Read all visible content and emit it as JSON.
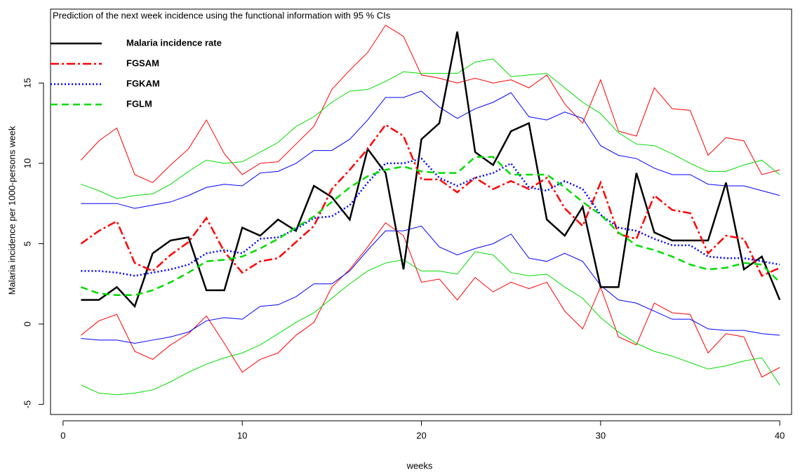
{
  "chart_data": {
    "type": "line",
    "title": "Prediction of the next week incidence using the functional information with 95 % CIs",
    "x_label": "weeks",
    "y_label": "Malaria incidence per 1000-persons week",
    "x": [
      1,
      2,
      3,
      4,
      5,
      6,
      7,
      8,
      9,
      10,
      11,
      12,
      13,
      14,
      15,
      16,
      17,
      18,
      19,
      20,
      21,
      22,
      23,
      24,
      25,
      26,
      27,
      28,
      29,
      30,
      31,
      32,
      33,
      34,
      35,
      36,
      37,
      38,
      39,
      40
    ],
    "xlim": [
      -0.7,
      40.66
    ],
    "ylim": [
      -5.63,
      19.6
    ],
    "xticks": [
      0,
      10,
      20,
      30,
      40
    ],
    "yticks": [
      -5,
      0,
      5,
      10,
      15
    ],
    "series": [
      {
        "name": "Malaria incidence rate",
        "color": "#000000",
        "dash": "solid",
        "values": [
          1.5,
          1.5,
          2.3,
          1.1,
          4.4,
          5.2,
          5.4,
          2.1,
          2.1,
          6.0,
          5.5,
          6.5,
          5.8,
          8.6,
          7.9,
          6.5,
          10.9,
          9.4,
          3.4,
          11.5,
          12.5,
          18.2,
          10.7,
          9.9,
          12.0,
          12.5,
          6.5,
          5.5,
          7.3,
          2.3,
          2.3,
          9.4,
          5.7,
          5.2,
          5.2,
          5.2,
          8.8,
          3.4,
          4.2,
          1.5
        ]
      },
      {
        "name": "FGSAM",
        "color": "#ff0000",
        "dash": "dashdot",
        "values": [
          5.0,
          5.8,
          6.4,
          3.8,
          3.3,
          4.3,
          5.1,
          6.6,
          4.5,
          3.2,
          3.9,
          4.1,
          5.1,
          6.1,
          8.4,
          9.6,
          10.9,
          12.4,
          11.7,
          9.0,
          9.0,
          8.2,
          9.1,
          8.4,
          8.9,
          8.4,
          9.1,
          7.2,
          6.1,
          8.8,
          5.6,
          5.3,
          8.0,
          7.1,
          6.9,
          4.4,
          5.5,
          5.3,
          3.0,
          3.5
        ],
        "upper": [
          10.2,
          11.4,
          12.2,
          9.3,
          8.8,
          9.9,
          10.9,
          12.7,
          10.6,
          9.3,
          10.0,
          10.1,
          11.2,
          12.3,
          14.6,
          15.8,
          16.9,
          18.6,
          17.9,
          15.5,
          15.3,
          15.0,
          15.3,
          15.0,
          15.2,
          14.7,
          15.5,
          13.7,
          12.5,
          15.2,
          12.0,
          11.7,
          14.7,
          13.4,
          13.3,
          10.5,
          11.6,
          11.4,
          9.3,
          9.6
        ],
        "lower": [
          -0.7,
          0.2,
          0.6,
          -1.7,
          -2.2,
          -1.3,
          -0.6,
          0.5,
          -1.2,
          -3.0,
          -2.2,
          -1.8,
          -0.7,
          0.1,
          2.3,
          3.4,
          4.8,
          6.3,
          5.5,
          2.6,
          2.8,
          1.5,
          2.9,
          2.0,
          2.6,
          2.2,
          2.6,
          0.8,
          -0.3,
          2.3,
          -0.8,
          -1.3,
          1.3,
          0.7,
          0.6,
          -1.8,
          -0.6,
          -0.8,
          -3.3,
          -2.7
        ]
      },
      {
        "name": "FGKAM",
        "color": "#0000ff",
        "dash": "dotted",
        "values": [
          3.3,
          3.3,
          3.2,
          3.0,
          3.2,
          3.4,
          3.7,
          4.4,
          4.6,
          4.4,
          5.3,
          5.4,
          5.9,
          6.6,
          6.7,
          7.4,
          8.8,
          10.0,
          10.0,
          10.3,
          9.1,
          8.6,
          9.1,
          9.4,
          10.0,
          8.5,
          8.3,
          8.9,
          8.4,
          6.8,
          6.0,
          5.8,
          5.3,
          4.9,
          4.9,
          4.2,
          4.1,
          4.1,
          3.9,
          3.7
        ],
        "upper": [
          7.5,
          7.5,
          7.5,
          7.2,
          7.4,
          7.6,
          8.0,
          8.5,
          8.7,
          8.6,
          9.4,
          9.5,
          10.0,
          10.8,
          10.8,
          11.5,
          12.7,
          14.1,
          14.1,
          14.5,
          13.5,
          12.8,
          13.4,
          13.8,
          14.4,
          12.9,
          12.7,
          13.2,
          12.8,
          11.1,
          10.5,
          10.3,
          9.7,
          9.3,
          9.3,
          8.7,
          8.6,
          8.6,
          8.3,
          8.0
        ],
        "lower": [
          -0.9,
          -1.0,
          -1.0,
          -1.2,
          -1.0,
          -0.8,
          -0.5,
          0.2,
          0.4,
          0.3,
          1.1,
          1.2,
          1.7,
          2.5,
          2.5,
          3.3,
          4.6,
          5.8,
          5.8,
          6.1,
          4.8,
          4.3,
          4.7,
          5.0,
          5.6,
          4.1,
          3.9,
          4.4,
          3.9,
          2.4,
          1.5,
          1.3,
          0.8,
          0.3,
          0.3,
          -0.3,
          -0.4,
          -0.4,
          -0.6,
          -0.7
        ]
      },
      {
        "name": "FGLM",
        "color": "#00dd00",
        "dash": "dashed",
        "values": [
          2.3,
          1.9,
          1.8,
          1.8,
          2.1,
          2.6,
          3.2,
          3.9,
          4.0,
          4.2,
          4.7,
          5.3,
          6.0,
          6.7,
          7.6,
          8.5,
          9.2,
          9.6,
          9.8,
          9.5,
          9.4,
          9.4,
          10.4,
          10.4,
          9.3,
          9.3,
          9.3,
          8.5,
          7.6,
          6.8,
          5.7,
          4.9,
          4.6,
          4.2,
          3.7,
          3.4,
          3.5,
          3.8,
          3.7,
          2.6
        ],
        "upper": [
          8.7,
          8.3,
          7.8,
          8.0,
          8.1,
          8.7,
          9.5,
          10.2,
          10.0,
          10.1,
          10.7,
          11.3,
          12.3,
          12.9,
          13.8,
          14.5,
          14.6,
          15.1,
          15.7,
          15.6,
          15.6,
          15.6,
          16.3,
          16.5,
          15.4,
          15.5,
          15.6,
          14.7,
          13.8,
          13.1,
          11.9,
          11.2,
          11.1,
          10.6,
          10.0,
          9.5,
          9.5,
          9.9,
          10.2,
          9.3
        ],
        "lower": [
          -3.8,
          -4.3,
          -4.4,
          -4.3,
          -4.1,
          -3.6,
          -3.0,
          -2.5,
          -2.1,
          -1.8,
          -1.3,
          -0.6,
          0.1,
          0.7,
          1.6,
          2.5,
          3.3,
          3.8,
          4.0,
          3.3,
          3.3,
          3.1,
          4.5,
          4.3,
          3.2,
          3.0,
          3.1,
          2.3,
          1.6,
          0.4,
          -0.5,
          -1.2,
          -1.7,
          -2.0,
          -2.4,
          -2.8,
          -2.6,
          -2.3,
          -2.1,
          -3.8
        ]
      }
    ],
    "legend": "top-left"
  }
}
